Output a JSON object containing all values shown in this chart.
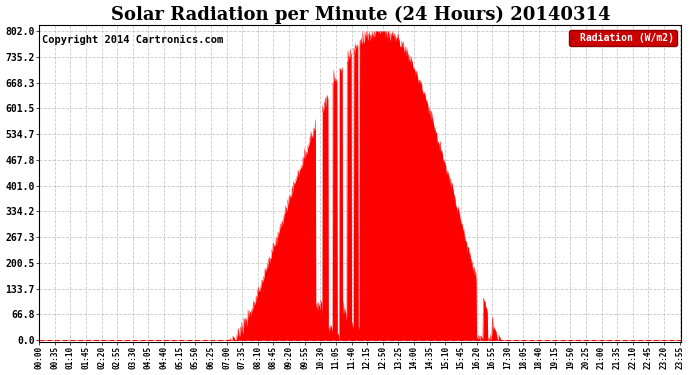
{
  "title": "Solar Radiation per Minute (24 Hours) 20140314",
  "copyright_text": "Copyright 2014 Cartronics.com",
  "legend_label": "Radiation (W/m2)",
  "yticks": [
    0.0,
    66.8,
    133.7,
    200.5,
    267.3,
    334.2,
    401.0,
    467.8,
    534.7,
    601.5,
    668.3,
    735.2,
    802.0
  ],
  "ymax": 802.0,
  "ymin": 0.0,
  "fill_color": "#FF0000",
  "line_color": "#FF0000",
  "bg_color": "#FFFFFF",
  "grid_color": "#BBBBBB",
  "title_fontsize": 13,
  "copyright_fontsize": 7.5,
  "legend_bg": "#CC0000",
  "legend_text_color": "#FFFFFF",
  "minutes_per_day": 1440,
  "sunrise_minute": 440,
  "sunset_minute": 1040,
  "peak_minute": 770,
  "peak_value": 802.0,
  "xtick_labels": [
    "00:00",
    "00:35",
    "01:10",
    "01:45",
    "02:20",
    "02:55",
    "03:30",
    "04:05",
    "04:40",
    "05:15",
    "05:50",
    "06:25",
    "07:00",
    "07:35",
    "08:10",
    "08:45",
    "09:20",
    "09:55",
    "10:30",
    "11:05",
    "11:40",
    "12:15",
    "12:50",
    "13:25",
    "14:00",
    "14:35",
    "15:10",
    "15:45",
    "16:20",
    "16:55",
    "17:30",
    "18:05",
    "18:40",
    "19:15",
    "19:50",
    "20:25",
    "21:00",
    "21:35",
    "22:10",
    "22:45",
    "23:20",
    "23:55"
  ],
  "xtick_positions": [
    0,
    35,
    70,
    105,
    140,
    175,
    210,
    245,
    280,
    315,
    350,
    385,
    420,
    455,
    490,
    525,
    560,
    595,
    630,
    665,
    700,
    735,
    770,
    805,
    840,
    875,
    910,
    945,
    980,
    1015,
    1050,
    1085,
    1120,
    1155,
    1190,
    1225,
    1260,
    1295,
    1330,
    1365,
    1400,
    1435
  ]
}
